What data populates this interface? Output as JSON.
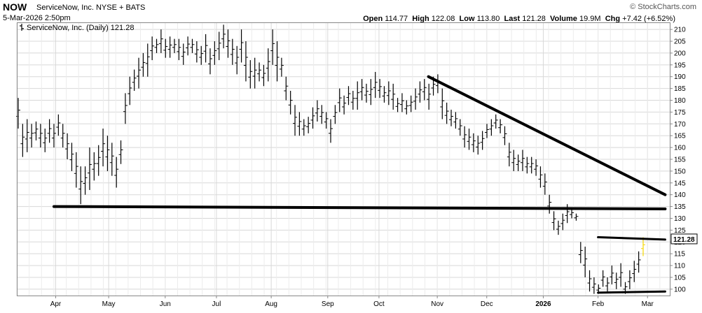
{
  "header": {
    "symbol": "NOW",
    "company": "ServiceNow, Inc. NYSE + BATS",
    "date": "5-Mar-2026 2:50pm",
    "credit": "© StockCharts.com",
    "stats": {
      "open_label": "Open",
      "open": "114.77",
      "high_label": "High",
      "high": "122.08",
      "low_label": "Low",
      "low": "113.80",
      "last_label": "Last",
      "last": "121.28",
      "volume_label": "Volume",
      "volume": "19.9M",
      "chg_label": "Chg",
      "chg": "+7.42 (+6.52%)"
    }
  },
  "chart_data": {
    "type": "ohlc",
    "legend": "ServiceNow, Inc. (Daily) 121.28",
    "last_price_label": "121.28",
    "y_ticks": [
      100,
      105,
      110,
      115,
      120,
      125,
      130,
      135,
      140,
      145,
      150,
      155,
      160,
      165,
      170,
      175,
      180,
      185,
      190,
      195,
      200,
      205,
      210
    ],
    "ylim": [
      97,
      213
    ],
    "x_ticks": [
      "Apr",
      "May",
      "Jun",
      "Jul",
      "Aug",
      "Sep",
      "Oct",
      "Nov",
      "Dec",
      "2026",
      "Feb",
      "Mar"
    ],
    "grid": true,
    "colors": {
      "bars": "#000000",
      "last_bar": "#f5d700",
      "trendline": "#000000",
      "grid": "#d8d8d8"
    },
    "bars_high_low": [
      [
        181,
        168
      ],
      [
        170,
        156
      ],
      [
        172,
        158
      ],
      [
        170,
        160
      ],
      [
        171,
        163
      ],
      [
        170,
        160
      ],
      [
        168,
        158
      ],
      [
        172,
        162
      ],
      [
        170,
        160
      ],
      [
        174,
        165
      ],
      [
        170,
        160
      ],
      [
        166,
        155
      ],
      [
        162,
        150
      ],
      [
        158,
        143
      ],
      [
        152,
        136
      ],
      [
        152,
        140
      ],
      [
        160,
        142
      ],
      [
        158,
        146
      ],
      [
        161,
        148
      ],
      [
        168,
        152
      ],
      [
        165,
        150
      ],
      [
        162,
        148
      ],
      [
        156,
        143
      ],
      [
        163,
        153
      ],
      [
        183,
        170
      ],
      [
        190,
        178
      ],
      [
        193,
        184
      ],
      [
        198,
        185
      ],
      [
        200,
        190
      ],
      [
        204,
        190
      ],
      [
        207,
        197
      ],
      [
        206,
        200
      ],
      [
        210,
        200
      ],
      [
        206,
        198
      ],
      [
        207,
        198
      ],
      [
        206,
        200
      ],
      [
        206,
        197
      ],
      [
        204,
        195
      ],
      [
        207,
        199
      ],
      [
        206,
        200
      ],
      [
        205,
        196
      ],
      [
        203,
        195
      ],
      [
        208,
        196
      ],
      [
        202,
        191
      ],
      [
        205,
        195
      ],
      [
        209,
        197
      ],
      [
        212,
        202
      ],
      [
        210,
        198
      ],
      [
        206,
        195
      ],
      [
        203,
        191
      ],
      [
        210,
        196
      ],
      [
        205,
        188
      ],
      [
        197,
        185
      ],
      [
        198,
        185
      ],
      [
        196,
        188
      ],
      [
        195,
        186
      ],
      [
        202,
        188
      ],
      [
        210,
        195
      ],
      [
        205,
        188
      ],
      [
        198,
        190
      ],
      [
        190,
        180
      ],
      [
        184,
        174
      ],
      [
        178,
        165
      ],
      [
        175,
        165
      ],
      [
        172,
        165
      ],
      [
        173,
        166
      ],
      [
        177,
        168
      ],
      [
        180,
        171
      ],
      [
        178,
        170
      ],
      [
        175,
        168
      ],
      [
        172,
        162
      ],
      [
        178,
        170
      ],
      [
        185,
        175
      ],
      [
        182,
        174
      ],
      [
        186,
        178
      ],
      [
        184,
        176
      ],
      [
        188,
        176
      ],
      [
        189,
        180
      ],
      [
        187,
        179
      ],
      [
        189,
        178
      ],
      [
        192,
        181
      ],
      [
        189,
        181
      ],
      [
        186,
        179
      ],
      [
        188,
        178
      ],
      [
        187,
        176
      ],
      [
        181,
        175
      ],
      [
        183,
        175
      ],
      [
        180,
        174
      ],
      [
        182,
        175
      ],
      [
        185,
        176
      ],
      [
        188,
        179
      ],
      [
        189,
        180
      ],
      [
        187,
        176
      ],
      [
        190,
        182
      ],
      [
        191,
        183
      ],
      [
        185,
        172
      ],
      [
        179,
        170
      ],
      [
        176,
        169
      ],
      [
        175,
        168
      ],
      [
        172,
        165
      ],
      [
        169,
        160
      ],
      [
        168,
        159
      ],
      [
        166,
        158
      ],
      [
        165,
        157
      ],
      [
        167,
        159
      ],
      [
        170,
        164
      ],
      [
        172,
        165
      ],
      [
        174,
        168
      ],
      [
        172,
        166
      ],
      [
        169,
        161
      ],
      [
        162,
        152
      ],
      [
        159,
        150
      ],
      [
        157,
        150
      ],
      [
        159,
        150
      ],
      [
        156,
        149
      ],
      [
        156,
        149
      ],
      [
        155,
        148
      ],
      [
        152,
        143
      ],
      [
        149,
        140
      ],
      [
        140,
        132
      ],
      [
        133,
        125
      ],
      [
        129,
        123
      ],
      [
        132,
        125
      ],
      [
        136,
        128
      ],
      [
        134,
        130
      ],
      [
        132,
        129
      ],
      [
        120,
        111
      ],
      [
        118,
        105
      ],
      [
        108,
        99
      ],
      [
        105,
        98
      ],
      [
        102,
        98
      ],
      [
        108,
        101
      ],
      [
        105,
        99
      ],
      [
        110,
        102
      ],
      [
        107,
        100
      ],
      [
        111,
        101
      ],
      [
        103,
        98
      ],
      [
        108,
        100
      ],
      [
        112,
        103
      ],
      [
        116,
        107
      ],
      [
        122,
        114
      ]
    ],
    "support_line": [
      {
        "x": "2025-03-31",
        "y": 135
      },
      {
        "x": "2026-03-12",
        "y": 134
      }
    ],
    "downtrend_line": [
      {
        "x": "2025-10-29",
        "y": 190
      },
      {
        "x": "2026-03-12",
        "y": 140
      }
    ],
    "range_top_line": [
      {
        "x": "2026-02-02",
        "y": 122
      },
      {
        "x": "2026-03-12",
        "y": 121
      }
    ],
    "range_bottom_line": [
      {
        "x": "2026-02-02",
        "y": 98.5
      },
      {
        "x": "2026-03-12",
        "y": 99
      }
    ]
  }
}
